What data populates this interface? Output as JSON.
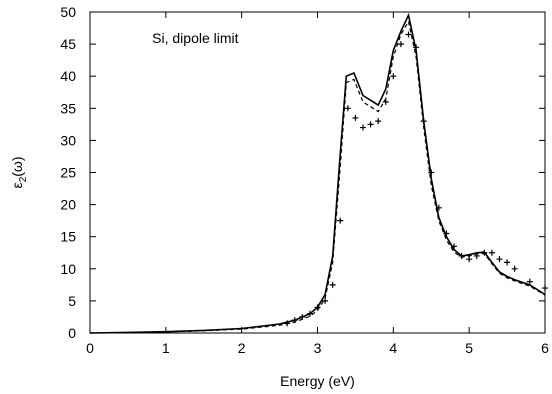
{
  "chart_data": {
    "type": "line",
    "title": "",
    "xlabel": "Energy (eV)",
    "ylabel_main": "ε",
    "ylabel_sub": "2",
    "ylabel_tail": "(ω)",
    "xlim": [
      0,
      6
    ],
    "ylim": [
      0,
      50
    ],
    "xticks": [
      "0",
      "1",
      "2",
      "3",
      "4",
      "5",
      "6"
    ],
    "yticks": [
      "0",
      "5",
      "10",
      "15",
      "20",
      "25",
      "30",
      "35",
      "40",
      "45",
      "50"
    ],
    "grid": false,
    "legend": "none",
    "annotation": "Si, dipole limit",
    "series": [
      {
        "style": "solid",
        "x": [
          0.0,
          0.5,
          1.0,
          1.5,
          2.0,
          2.5,
          2.7,
          2.9,
          3.0,
          3.1,
          3.2,
          3.3,
          3.38,
          3.48,
          3.6,
          3.8,
          3.9,
          4.0,
          4.1,
          4.2,
          4.3,
          4.4,
          4.5,
          4.6,
          4.7,
          4.8,
          4.9,
          5.0,
          5.1,
          5.2,
          5.3,
          5.4,
          5.5,
          5.6,
          5.8,
          6.0
        ],
        "y": [
          0.0,
          0.1,
          0.2,
          0.4,
          0.7,
          1.4,
          2.0,
          3.0,
          4.0,
          6.0,
          12.0,
          28.0,
          40.0,
          40.5,
          37.0,
          35.5,
          38.0,
          44.0,
          47.0,
          49.5,
          44.0,
          33.0,
          24.0,
          18.0,
          15.0,
          13.0,
          12.0,
          12.2,
          12.5,
          12.6,
          11.0,
          9.5,
          8.8,
          8.3,
          7.5,
          6.0
        ]
      },
      {
        "style": "dashed",
        "x": [
          0.0,
          0.5,
          1.0,
          1.5,
          2.0,
          2.5,
          2.7,
          2.9,
          3.0,
          3.1,
          3.2,
          3.3,
          3.38,
          3.48,
          3.6,
          3.8,
          3.9,
          4.0,
          4.1,
          4.2,
          4.3,
          4.4,
          4.5,
          4.6,
          4.7,
          4.8,
          4.9,
          5.0,
          5.1,
          5.2,
          5.3,
          5.4,
          5.5,
          5.6,
          5.8,
          6.0
        ],
        "y": [
          0.0,
          0.08,
          0.18,
          0.35,
          0.6,
          1.2,
          1.7,
          2.6,
          3.5,
          5.4,
          11.0,
          26.0,
          39.0,
          39.5,
          36.0,
          34.5,
          36.5,
          43.0,
          46.5,
          48.5,
          43.0,
          32.0,
          23.0,
          17.5,
          14.5,
          12.6,
          11.8,
          12.0,
          12.3,
          12.4,
          10.8,
          9.3,
          8.6,
          8.1,
          7.3,
          5.9
        ]
      },
      {
        "style": "plus",
        "x": [
          2.6,
          2.7,
          2.8,
          2.9,
          3.0,
          3.1,
          3.2,
          3.3,
          3.4,
          3.5,
          3.6,
          3.7,
          3.8,
          3.9,
          4.0,
          4.1,
          4.2,
          4.3,
          4.4,
          4.5,
          4.6,
          4.7,
          4.8,
          4.9,
          5.0,
          5.1,
          5.2,
          5.3,
          5.4,
          5.5,
          5.6,
          5.8,
          6.0
        ],
        "y": [
          1.5,
          2.0,
          2.5,
          3.0,
          4.0,
          5.0,
          7.5,
          17.5,
          35.0,
          33.5,
          32.0,
          32.5,
          33.0,
          36.0,
          40.0,
          45.0,
          46.5,
          44.5,
          33.0,
          25.0,
          19.5,
          15.5,
          13.5,
          12.0,
          11.5,
          12.0,
          12.5,
          12.5,
          11.5,
          11.0,
          10.0,
          8.0,
          7.0
        ]
      }
    ]
  }
}
